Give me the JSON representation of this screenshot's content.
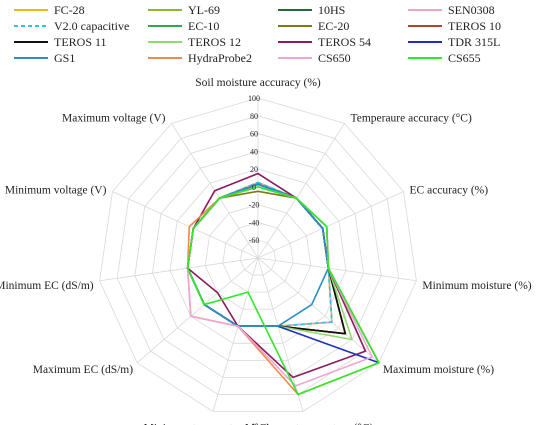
{
  "chart_data": {
    "type": "radar",
    "axes": [
      "Soil moisture accuracy (%)",
      "Temperaure accuracy (°C)",
      "EC accuracy (%)",
      "Minimum moisture (%)",
      "Maximum moisture (%)",
      "Maximum temperature (°C)",
      "Minimum temperature (°C)",
      "Maximum EC (dS/m)",
      "Minimum EC (dS/m)",
      "Minimum voltage (V)",
      "Maximum voltage (V)"
    ],
    "rlim": [
      -80,
      100
    ],
    "ticks": [
      -60,
      -40,
      -20,
      0,
      20,
      40,
      60,
      80,
      100
    ],
    "grid": true,
    "legend_position": "top",
    "series": [
      {
        "name": "FC-28",
        "color": "#f2b31c",
        "dash": false,
        "values": [
          5,
          0,
          0,
          0,
          30,
          0,
          0,
          0,
          0,
          0,
          0
        ]
      },
      {
        "name": "YL-69",
        "color": "#8fb82a",
        "dash": false,
        "values": [
          5,
          0,
          0,
          0,
          30,
          0,
          0,
          0,
          0,
          0,
          0
        ]
      },
      {
        "name": "10HS",
        "color": "#1e6b3a",
        "dash": false,
        "values": [
          3,
          0,
          0,
          0,
          50,
          0,
          0,
          0,
          0,
          0,
          0
        ]
      },
      {
        "name": "SEN0308",
        "color": "#f4a3c0",
        "dash": false,
        "values": [
          5,
          0,
          0,
          0,
          30,
          0,
          0,
          0,
          0,
          0,
          0
        ]
      },
      {
        "name": "V2.0 capacitive",
        "color": "#1ec8e6",
        "dash": true,
        "values": [
          5,
          0,
          0,
          0,
          30,
          0,
          0,
          0,
          0,
          0,
          0
        ]
      },
      {
        "name": "EC-10",
        "color": "#2aa84a",
        "dash": false,
        "values": [
          3,
          0,
          0,
          0,
          50,
          0,
          0,
          0,
          0,
          0,
          0
        ]
      },
      {
        "name": "EC-20",
        "color": "#7a7a14",
        "dash": false,
        "values": [
          -5,
          0,
          0,
          0,
          50,
          0,
          0,
          0,
          0,
          0,
          0
        ]
      },
      {
        "name": "TEROS 10",
        "color": "#b5451f",
        "dash": false,
        "values": [
          3,
          0,
          0,
          0,
          50,
          0,
          0,
          0,
          0,
          0,
          0
        ]
      },
      {
        "name": "TEROS 11",
        "color": "#111111",
        "dash": false,
        "values": [
          3,
          0,
          5,
          0,
          50,
          0,
          0,
          0,
          0,
          0,
          0
        ]
      },
      {
        "name": "TEROS 12",
        "color": "#8ddc6e",
        "dash": false,
        "values": [
          3,
          0,
          5,
          0,
          60,
          0,
          0,
          0,
          0,
          0,
          0
        ]
      },
      {
        "name": "TEROS 54",
        "color": "#8b1a5e",
        "dash": false,
        "values": [
          15,
          0,
          0,
          0,
          80,
          60,
          0,
          -20,
          0,
          0,
          10
        ]
      },
      {
        "name": "TDR 315L",
        "color": "#1f2fbf",
        "dash": false,
        "values": [
          3,
          0,
          0,
          0,
          100,
          0,
          0,
          0,
          0,
          0,
          0
        ]
      },
      {
        "name": "GS1",
        "color": "#2c8fc4",
        "dash": false,
        "values": [
          3,
          0,
          0,
          0,
          0,
          0,
          0,
          0,
          0,
          0,
          0
        ]
      },
      {
        "name": "HydraProbe2",
        "color": "#f08a4b",
        "dash": false,
        "values": [
          0,
          0,
          5,
          0,
          100,
          80,
          0,
          20,
          0,
          5,
          0
        ]
      },
      {
        "name": "CS650",
        "color": "#f0a5d5",
        "dash": false,
        "values": [
          0,
          0,
          5,
          0,
          90,
          70,
          0,
          20,
          0,
          0,
          0
        ]
      },
      {
        "name": "CS655",
        "color": "#2ee82a",
        "dash": false,
        "values": [
          0,
          0,
          5,
          0,
          100,
          80,
          -40,
          0,
          0,
          0,
          0
        ]
      }
    ]
  }
}
